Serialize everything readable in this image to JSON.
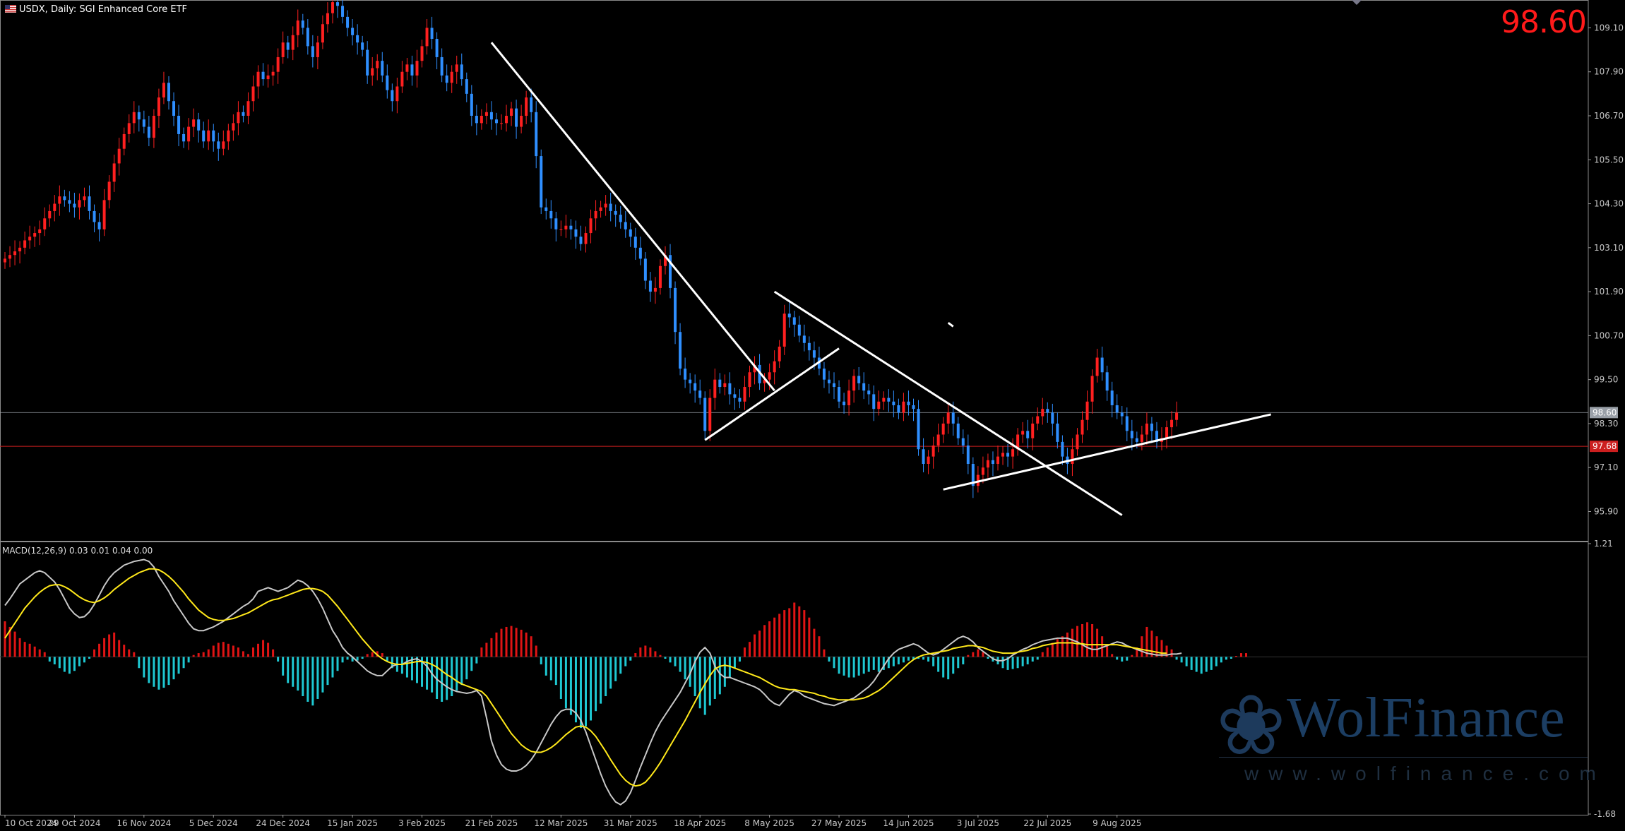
{
  "header": {
    "symbol": "USDX, Daily:",
    "description": "SGI Enhanced Core ETF",
    "last_price": "98.60"
  },
  "macd_label": "MACD(12,26,9) 0.03 0.01 0.04 0.00",
  "brand": {
    "name": "WolFinance",
    "url": "www.wolfinance.com",
    "logo_icon": "wolf-head-icon"
  },
  "colors": {
    "bull": "#ff2020",
    "bear": "#2f8fff",
    "macd_main": "#c8c8c8",
    "macd_signal": "#ffe81a",
    "hist_pos": "#e01414",
    "hist_neg": "#1ec8d2",
    "support": "#cc2020",
    "grid": "#3a3a3a"
  },
  "chart_data": [
    {
      "type": "candlestick",
      "ylim": [
        95.1,
        109.86
      ],
      "yticks": [
        "109.10",
        "107.90",
        "106.70",
        "105.50",
        "104.30",
        "103.10",
        "101.90",
        "100.70",
        "99.50",
        "98.30",
        "97.10",
        "95.90"
      ],
      "price_badges": [
        {
          "value": 98.6,
          "label": "98.60",
          "color": "#9aa0a8"
        },
        {
          "value": 97.68,
          "label": "97.68",
          "color": "#cc1f1f"
        }
      ],
      "x_labels": [
        "10 Oct 2024",
        "29 Oct 2024",
        "16 Nov 2024",
        "5 Dec 2024",
        "24 Dec 2024",
        "15 Jan 2025",
        "3 Feb 2025",
        "21 Feb 2025",
        "12 Mar 2025",
        "31 Mar 2025",
        "18 Apr 2025",
        "8 May 2025",
        "27 May 2025",
        "14 Jun 2025",
        "3 Jul 2025",
        "22 Jul 2025",
        "9 Aug 2025"
      ],
      "x_label_index": [
        0,
        14,
        28,
        42,
        56,
        70,
        84,
        98,
        112,
        126,
        140,
        154,
        168,
        182,
        196,
        210,
        224
      ],
      "closes": [
        102.8,
        102.9,
        103.0,
        103.1,
        103.3,
        103.4,
        103.5,
        103.6,
        103.9,
        104.1,
        104.3,
        104.5,
        104.4,
        104.3,
        104.2,
        104.4,
        104.5,
        104.1,
        103.8,
        103.6,
        104.4,
        104.9,
        105.4,
        105.8,
        106.2,
        106.5,
        106.8,
        106.6,
        106.4,
        106.1,
        106.7,
        107.2,
        107.6,
        107.1,
        106.7,
        106.2,
        106.0,
        106.4,
        106.6,
        106.3,
        106.0,
        106.3,
        106.0,
        105.8,
        106.0,
        106.3,
        106.5,
        106.8,
        106.7,
        107.1,
        107.5,
        107.9,
        107.7,
        107.8,
        107.9,
        108.3,
        108.7,
        108.5,
        108.9,
        109.3,
        109.1,
        108.6,
        108.3,
        108.7,
        109.2,
        109.5,
        109.8,
        109.7,
        109.4,
        109.1,
        108.9,
        108.7,
        108.5,
        107.8,
        108.0,
        108.2,
        107.8,
        107.4,
        107.1,
        107.5,
        107.9,
        108.1,
        107.8,
        108.2,
        108.6,
        109.1,
        108.8,
        108.3,
        107.8,
        107.6,
        107.9,
        108.1,
        107.7,
        107.3,
        106.7,
        106.5,
        106.7,
        106.8,
        106.6,
        106.5,
        106.5,
        106.7,
        106.9,
        106.4,
        106.7,
        107.2,
        106.8,
        105.6,
        104.2,
        104.1,
        103.9,
        103.6,
        103.6,
        103.7,
        103.6,
        103.4,
        103.2,
        103.5,
        103.9,
        104.1,
        104.2,
        104.3,
        104.1,
        104.0,
        103.8,
        103.6,
        103.4,
        103.1,
        102.8,
        102.2,
        101.9,
        102.0,
        102.6,
        102.9,
        102.0,
        100.8,
        99.8,
        99.5,
        99.4,
        99.2,
        99.0,
        98.1,
        99.0,
        99.5,
        99.3,
        99.4,
        99.1,
        99.0,
        98.9,
        99.3,
        99.7,
        99.9,
        99.4,
        99.5,
        99.7,
        100.0,
        100.4,
        101.3,
        101.2,
        101.0,
        100.7,
        100.5,
        100.3,
        100.1,
        99.8,
        99.5,
        99.4,
        99.3,
        98.9,
        98.8,
        99.2,
        99.6,
        99.4,
        99.2,
        99.1,
        98.7,
        98.9,
        99.0,
        98.9,
        98.8,
        98.6,
        98.9,
        98.8,
        98.7,
        97.6,
        97.2,
        97.4,
        97.7,
        98.0,
        98.3,
        98.6,
        98.3,
        97.9,
        97.7,
        97.2,
        96.6,
        96.9,
        97.1,
        97.3,
        97.2,
        97.4,
        97.5,
        97.4,
        97.6,
        98.0,
        98.1,
        97.9,
        98.3,
        98.5,
        98.7,
        98.6,
        98.3,
        97.8,
        97.4,
        97.2,
        97.6,
        98.0,
        98.4,
        98.9,
        99.6,
        100.1,
        99.7,
        99.2,
        98.8,
        98.6,
        98.5,
        98.1,
        97.9,
        97.8,
        98.0,
        98.3,
        98.1,
        97.8,
        97.9,
        98.2,
        98.4,
        98.6
      ],
      "trendlines": [
        {
          "from": [
            98,
            108.7
          ],
          "to": [
            155,
            99.2
          ]
        },
        {
          "from": [
            141,
            97.85
          ],
          "to": [
            168,
            100.35
          ]
        },
        {
          "from": [
            155,
            101.9
          ],
          "to": [
            225,
            95.8
          ]
        },
        {
          "from": [
            189,
            96.5
          ],
          "to": [
            255,
            98.55
          ]
        }
      ],
      "note_tick": {
        "from": [
          190,
          101.05
        ],
        "to": [
          191,
          100.95
        ]
      }
    },
    {
      "type": "macd",
      "ylim": [
        -1.68,
        1.21
      ],
      "yticks": [
        "1.21",
        "-1.68"
      ],
      "histogram": [
        0.38,
        0.32,
        0.27,
        0.2,
        0.16,
        0.14,
        0.11,
        0.08,
        0.05,
        -0.05,
        -0.08,
        -0.12,
        -0.16,
        -0.18,
        -0.15,
        -0.1,
        -0.06,
        -0.02,
        0.08,
        0.14,
        0.2,
        0.24,
        0.26,
        0.18,
        0.13,
        0.08,
        0.05,
        -0.12,
        -0.22,
        -0.28,
        -0.32,
        -0.35,
        -0.33,
        -0.3,
        -0.24,
        -0.18,
        -0.12,
        -0.06,
        0.02,
        0.04,
        0.05,
        0.08,
        0.12,
        0.15,
        0.16,
        0.14,
        0.12,
        0.1,
        0.06,
        0.03,
        0.1,
        0.14,
        0.18,
        0.15,
        0.08,
        -0.05,
        -0.2,
        -0.28,
        -0.32,
        -0.36,
        -0.42,
        -0.48,
        -0.52,
        -0.45,
        -0.38,
        -0.3,
        -0.22,
        -0.15,
        -0.06,
        -0.03,
        -0.05,
        -0.04,
        -0.02,
        0.03,
        0.05,
        0.06,
        0.04,
        -0.05,
        -0.12,
        -0.16,
        -0.18,
        -0.22,
        -0.25,
        -0.28,
        -0.32,
        -0.35,
        -0.38,
        -0.45,
        -0.48,
        -0.46,
        -0.42,
        -0.36,
        -0.3,
        -0.24,
        -0.15,
        -0.07,
        0.1,
        0.15,
        0.2,
        0.26,
        0.3,
        0.32,
        0.33,
        0.31,
        0.29,
        0.26,
        0.22,
        0.12,
        -0.08,
        -0.2,
        -0.25,
        -0.3,
        -0.45,
        -0.55,
        -0.62,
        -0.7,
        -0.76,
        -0.74,
        -0.68,
        -0.58,
        -0.5,
        -0.42,
        -0.34,
        -0.26,
        -0.18,
        -0.1,
        -0.04,
        0.04,
        0.1,
        0.12,
        0.1,
        0.06,
        0.02,
        -0.02,
        -0.06,
        -0.1,
        -0.16,
        -0.24,
        -0.32,
        -0.42,
        -0.55,
        -0.62,
        -0.52,
        -0.45,
        -0.4,
        -0.32,
        -0.22,
        -0.12,
        -0.05,
        0.1,
        0.16,
        0.24,
        0.28,
        0.34,
        0.38,
        0.42,
        0.46,
        0.5,
        0.52,
        0.58,
        0.54,
        0.5,
        0.42,
        0.3,
        0.22,
        0.08,
        -0.05,
        -0.12,
        -0.18,
        -0.2,
        -0.22,
        -0.22,
        -0.2,
        -0.18,
        -0.16,
        -0.14,
        -0.16,
        -0.14,
        -0.12,
        -0.1,
        -0.08,
        -0.06,
        -0.04,
        -0.03,
        -0.02,
        -0.03,
        -0.05,
        -0.1,
        -0.16,
        -0.22,
        -0.24,
        -0.18,
        -0.12,
        -0.08,
        0.02,
        0.05,
        0.08,
        0.05,
        -0.02,
        -0.05,
        -0.08,
        -0.12,
        -0.14,
        -0.13,
        -0.12,
        -0.1,
        -0.08,
        -0.05,
        -0.03,
        0.05,
        0.1,
        0.15,
        0.19,
        0.22,
        0.26,
        0.3,
        0.33,
        0.35,
        0.37,
        0.35,
        0.3,
        0.22,
        0.12,
        0.03,
        -0.03,
        -0.05,
        -0.04,
        0.02,
        0.1,
        0.22,
        0.32,
        0.28,
        0.22,
        0.18,
        0.12,
        0.08,
        -0.03,
        -0.06,
        -0.1,
        -0.14,
        -0.16,
        -0.18,
        -0.16,
        -0.14,
        -0.1,
        -0.06,
        -0.03,
        -0.02,
        0.01,
        0.04,
        0.04
      ],
      "main": [
        0.55,
        0.62,
        0.7,
        0.78,
        0.82,
        0.86,
        0.9,
        0.92,
        0.9,
        0.85,
        0.8,
        0.72,
        0.62,
        0.52,
        0.46,
        0.42,
        0.43,
        0.48,
        0.56,
        0.66,
        0.76,
        0.84,
        0.9,
        0.94,
        0.98,
        1.0,
        1.02,
        1.03,
        1.04,
        1.02,
        0.96,
        0.86,
        0.78,
        0.7,
        0.6,
        0.52,
        0.44,
        0.36,
        0.3,
        0.28,
        0.28,
        0.3,
        0.32,
        0.35,
        0.38,
        0.42,
        0.46,
        0.5,
        0.54,
        0.57,
        0.62,
        0.7,
        0.72,
        0.74,
        0.72,
        0.7,
        0.72,
        0.74,
        0.78,
        0.82,
        0.8,
        0.76,
        0.7,
        0.62,
        0.52,
        0.4,
        0.28,
        0.2,
        0.1,
        0.04,
        0.0,
        -0.05,
        -0.1,
        -0.15,
        -0.18,
        -0.2,
        -0.2,
        -0.15,
        -0.1,
        -0.08,
        -0.08,
        -0.05,
        -0.03,
        -0.02,
        -0.05,
        -0.1,
        -0.18,
        -0.24,
        -0.28,
        -0.32,
        -0.35,
        -0.37,
        -0.38,
        -0.39,
        -0.38,
        -0.36,
        -0.42,
        -0.65,
        -0.9,
        -1.05,
        -1.15,
        -1.2,
        -1.22,
        -1.22,
        -1.2,
        -1.16,
        -1.1,
        -1.02,
        -0.92,
        -0.82,
        -0.72,
        -0.64,
        -0.58,
        -0.56,
        -0.56,
        -0.6,
        -0.68,
        -0.8,
        -0.95,
        -1.1,
        -1.25,
        -1.38,
        -1.48,
        -1.55,
        -1.58,
        -1.54,
        -1.45,
        -1.32,
        -1.18,
        -1.05,
        -0.92,
        -0.8,
        -0.7,
        -0.62,
        -0.54,
        -0.46,
        -0.38,
        -0.28,
        -0.18,
        -0.05,
        0.05,
        0.1,
        0.04,
        -0.1,
        -0.18,
        -0.22,
        -0.22,
        -0.24,
        -0.26,
        -0.28,
        -0.3,
        -0.32,
        -0.35,
        -0.4,
        -0.46,
        -0.5,
        -0.52,
        -0.46,
        -0.4,
        -0.36,
        -0.38,
        -0.42,
        -0.44,
        -0.46,
        -0.48,
        -0.5,
        -0.51,
        -0.52,
        -0.5,
        -0.48,
        -0.46,
        -0.44,
        -0.4,
        -0.36,
        -0.32,
        -0.26,
        -0.18,
        -0.1,
        -0.02,
        0.04,
        0.08,
        0.1,
        0.12,
        0.14,
        0.12,
        0.08,
        0.04,
        0.02,
        0.04,
        0.08,
        0.12,
        0.16,
        0.2,
        0.22,
        0.2,
        0.16,
        0.1,
        0.06,
        0.02,
        -0.02,
        -0.04,
        -0.04,
        -0.02,
        0.02,
        0.05,
        0.08,
        0.1,
        0.13,
        0.15,
        0.17,
        0.18,
        0.19,
        0.2,
        0.2,
        0.2,
        0.18,
        0.16,
        0.13,
        0.1,
        0.08,
        0.08,
        0.1,
        0.12,
        0.14,
        0.16,
        0.15,
        0.12,
        0.1,
        0.08,
        0.06,
        0.04,
        0.03,
        0.02,
        0.02,
        0.02,
        0.03,
        0.03,
        0.04
      ],
      "signal": [
        0.2,
        0.28,
        0.36,
        0.44,
        0.52,
        0.58,
        0.64,
        0.69,
        0.73,
        0.76,
        0.77,
        0.77,
        0.75,
        0.72,
        0.68,
        0.64,
        0.61,
        0.59,
        0.58,
        0.6,
        0.63,
        0.67,
        0.72,
        0.76,
        0.8,
        0.84,
        0.87,
        0.9,
        0.92,
        0.94,
        0.94,
        0.93,
        0.9,
        0.86,
        0.81,
        0.75,
        0.69,
        0.62,
        0.56,
        0.5,
        0.46,
        0.42,
        0.4,
        0.39,
        0.39,
        0.4,
        0.41,
        0.43,
        0.45,
        0.47,
        0.5,
        0.53,
        0.56,
        0.59,
        0.61,
        0.62,
        0.64,
        0.66,
        0.68,
        0.7,
        0.72,
        0.73,
        0.73,
        0.72,
        0.7,
        0.66,
        0.6,
        0.54,
        0.47,
        0.4,
        0.33,
        0.26,
        0.19,
        0.13,
        0.07,
        0.02,
        -0.02,
        -0.05,
        -0.07,
        -0.08,
        -0.08,
        -0.07,
        -0.06,
        -0.05,
        -0.05,
        -0.06,
        -0.08,
        -0.11,
        -0.15,
        -0.19,
        -0.22,
        -0.26,
        -0.29,
        -0.31,
        -0.33,
        -0.35,
        -0.37,
        -0.42,
        -0.5,
        -0.58,
        -0.66,
        -0.74,
        -0.82,
        -0.88,
        -0.94,
        -0.98,
        -1.01,
        -1.02,
        -1.02,
        -1.0,
        -0.97,
        -0.93,
        -0.88,
        -0.83,
        -0.79,
        -0.75,
        -0.74,
        -0.75,
        -0.79,
        -0.85,
        -0.93,
        -1.01,
        -1.1,
        -1.18,
        -1.26,
        -1.32,
        -1.36,
        -1.38,
        -1.37,
        -1.34,
        -1.28,
        -1.21,
        -1.13,
        -1.04,
        -0.95,
        -0.86,
        -0.77,
        -0.68,
        -0.58,
        -0.48,
        -0.38,
        -0.29,
        -0.2,
        -0.13,
        -0.1,
        -0.09,
        -0.1,
        -0.12,
        -0.14,
        -0.16,
        -0.18,
        -0.2,
        -0.22,
        -0.25,
        -0.28,
        -0.31,
        -0.33,
        -0.34,
        -0.35,
        -0.35,
        -0.36,
        -0.37,
        -0.38,
        -0.39,
        -0.41,
        -0.42,
        -0.44,
        -0.45,
        -0.46,
        -0.46,
        -0.46,
        -0.46,
        -0.45,
        -0.44,
        -0.42,
        -0.39,
        -0.36,
        -0.32,
        -0.27,
        -0.22,
        -0.17,
        -0.12,
        -0.07,
        -0.03,
        0.0,
        0.02,
        0.03,
        0.04,
        0.05,
        0.06,
        0.07,
        0.09,
        0.1,
        0.11,
        0.12,
        0.12,
        0.11,
        0.1,
        0.08,
        0.06,
        0.05,
        0.04,
        0.04,
        0.04,
        0.05,
        0.06,
        0.07,
        0.09,
        0.1,
        0.12,
        0.13,
        0.14,
        0.15,
        0.15,
        0.15,
        0.15,
        0.14,
        0.14,
        0.13,
        0.13,
        0.13,
        0.13,
        0.13,
        0.13,
        0.13,
        0.12,
        0.11,
        0.1,
        0.09,
        0.08,
        0.07,
        0.06,
        0.05,
        0.04,
        0.04
      ]
    }
  ]
}
